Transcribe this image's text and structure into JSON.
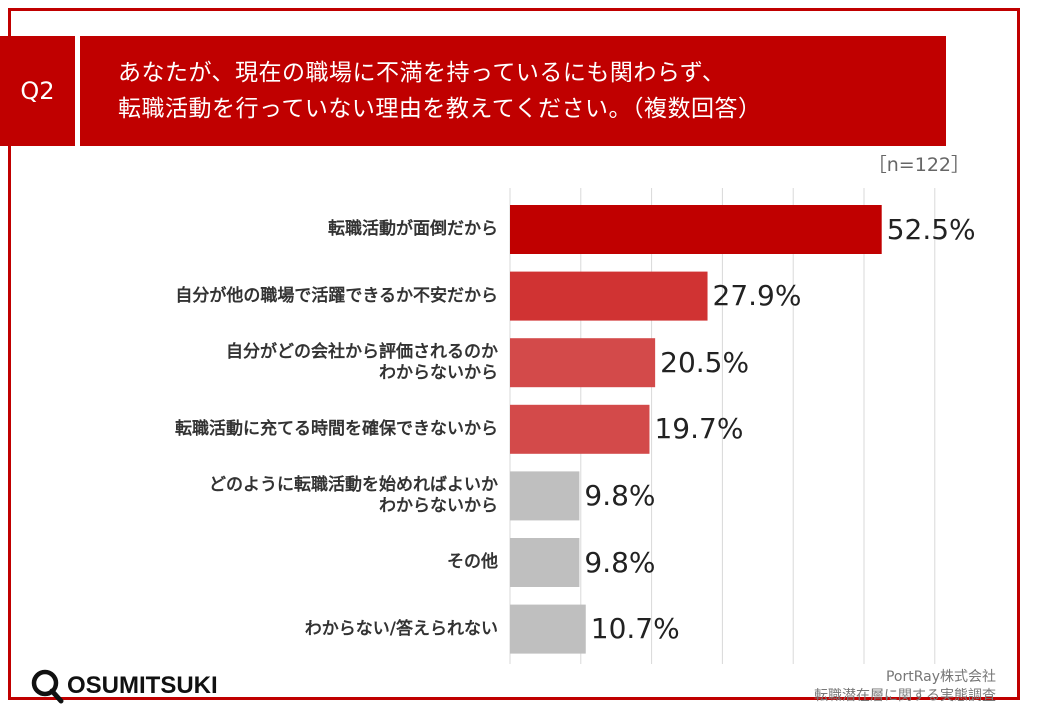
{
  "question": {
    "number": "Q2",
    "line1": "あなたが、現在の職場に不満を持っているにも関わらず、",
    "line2": "転職活動を行っていない理由を教えてください。（複数回答）"
  },
  "sample_size": "［n=122］",
  "chart_data": {
    "type": "bar",
    "orientation": "horizontal",
    "categories": [
      [
        "転職活動が面倒だから"
      ],
      [
        "自分が他の職場で活躍できるか不安だから"
      ],
      [
        "自分がどの会社から評価されるのか",
        "わからないから"
      ],
      [
        "転職活動に充てる時間を確保できないから"
      ],
      [
        "どのように転職活動を始めればよいか",
        "わからないから"
      ],
      [
        "その他"
      ],
      [
        "わからない/答えられない"
      ]
    ],
    "values": [
      52.5,
      27.9,
      20.5,
      19.7,
      9.8,
      9.8,
      10.7
    ],
    "value_labels": [
      "52.5%",
      "27.9%",
      "20.5%",
      "19.7%",
      "9.8%",
      "9.8%",
      "10.7%"
    ],
    "colors": [
      "#c00000",
      "#d03333",
      "#d34a4a",
      "#d34a4a",
      "#bfbfbf",
      "#bfbfbf",
      "#bfbfbf"
    ],
    "xlim": [
      0,
      60
    ],
    "grid": true
  },
  "source": {
    "line1": "PortRay株式会社",
    "line2": "転職潜在層に関する実態調査"
  },
  "logo": {
    "text": "OSUMITSUKI",
    "icon": "magnifier-icon"
  }
}
